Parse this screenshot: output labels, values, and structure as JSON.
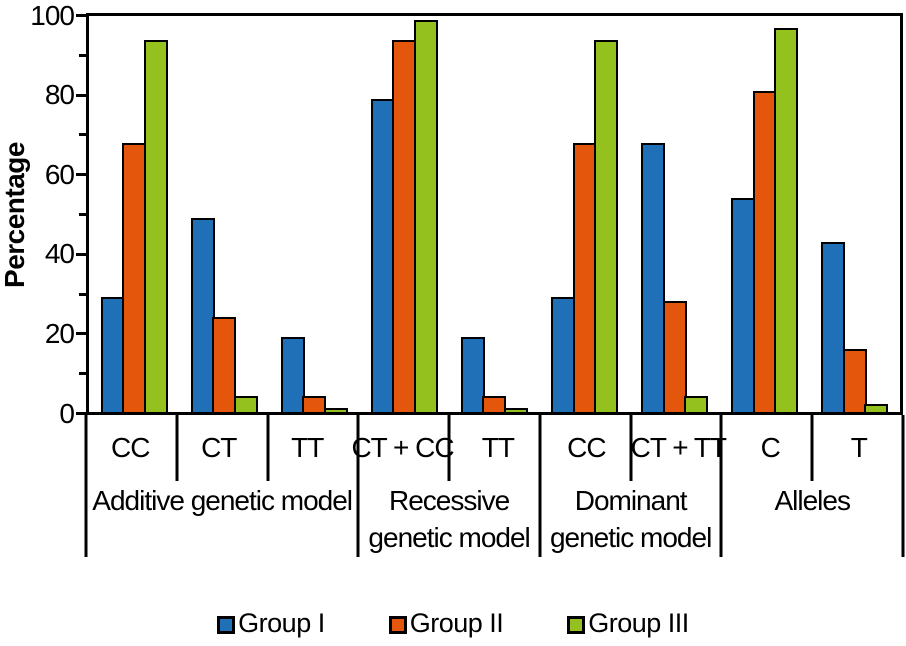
{
  "chart_data": {
    "type": "bar",
    "ylabel": "Percentage",
    "ylim": [
      0,
      100
    ],
    "grid": false,
    "legend_position": "bottom",
    "y_ticks": {
      "major": [
        0,
        20,
        40,
        60,
        80,
        100
      ],
      "minor": [
        10,
        30,
        50,
        70,
        90
      ]
    },
    "groups": [
      {
        "label_lines": [
          "Additive genetic model"
        ],
        "categories": [
          "CC",
          "CT",
          "TT"
        ]
      },
      {
        "label_lines": [
          "Recessive",
          "genetic model"
        ],
        "categories": [
          "CT + CC",
          "TT"
        ]
      },
      {
        "label_lines": [
          "Dominant",
          "genetic model"
        ],
        "categories": [
          "CC",
          "CT + TT"
        ]
      },
      {
        "label_lines": [
          "Alleles"
        ],
        "categories": [
          "C",
          "T"
        ]
      }
    ],
    "series": [
      {
        "name": "Group I",
        "color": "#1f70b7",
        "values": [
          29,
          49,
          19,
          79,
          19,
          29,
          68,
          54,
          43
        ]
      },
      {
        "name": "Group II",
        "color": "#e4560c",
        "values": [
          68,
          24,
          4,
          94,
          4,
          68,
          28,
          81,
          16
        ]
      },
      {
        "name": "Group III",
        "color": "#95c11f",
        "values": [
          94,
          4,
          1,
          99,
          1,
          94,
          4,
          97,
          2
        ]
      }
    ]
  },
  "colors": {
    "axis": "#000000",
    "background": "#ffffff"
  }
}
